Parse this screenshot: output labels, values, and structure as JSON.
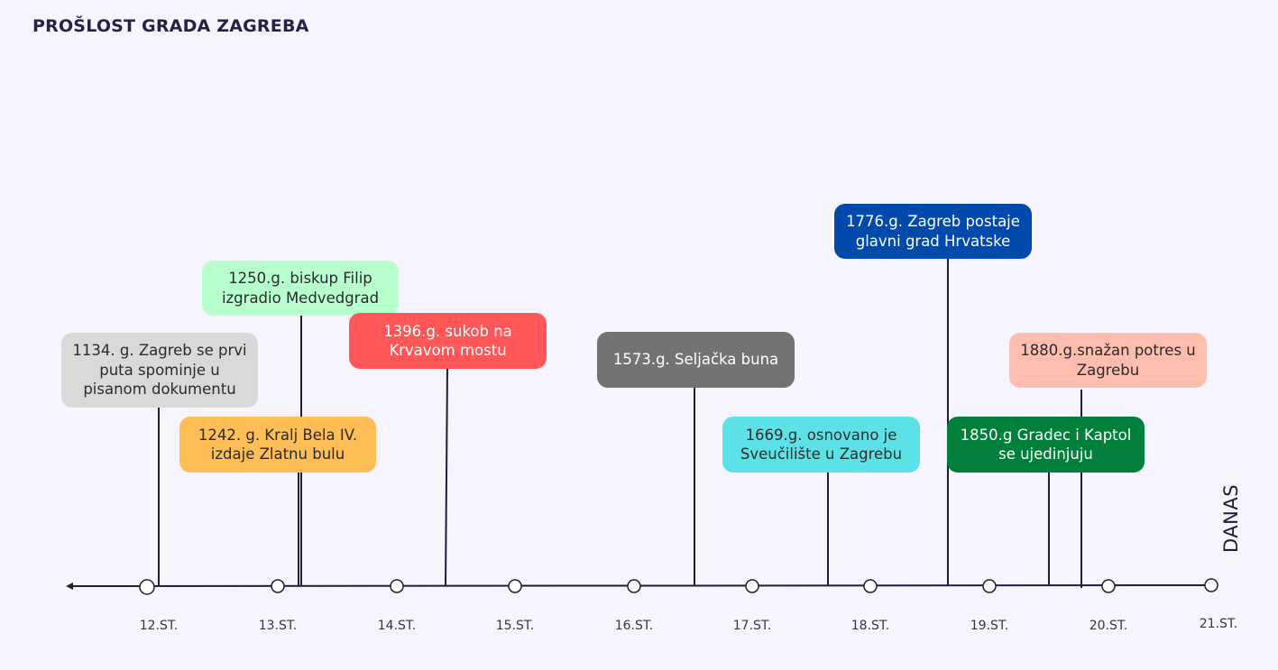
{
  "title": "PROŠLOST GRADA ZAGREBA",
  "end_label": "DANAS",
  "centuries": [
    "12.ST.",
    "13.ST.",
    "14.ST.",
    "15.ST.",
    "16.ST.",
    "17.ST.",
    "18.ST.",
    "19.ST.",
    "20.ST.",
    "21.ST."
  ],
  "events": [
    {
      "text": "1134. g. Zagreb se prvi puta spominje u pisanom dokumentu",
      "color": "#d9d9d9"
    },
    {
      "text": "1242. g. Kralj Bela IV. izdaje Zlatnu bulu",
      "color": "#ffbe55"
    },
    {
      "text": "1250.g. biskup Filip izgradio Medvedgrad",
      "color": "#b8ffce"
    },
    {
      "text": "1396.g. sukob na Krvavom mostu",
      "color": "#ff5757"
    },
    {
      "text": "1573.g. Seljačka buna",
      "color": "#737373"
    },
    {
      "text": "1669.g. osnovano je Sveučilište u Zagrebu",
      "color": "#5ce1e6"
    },
    {
      "text": "1776.g. Zagreb postaje glavni grad Hrvatske",
      "color": "#004aad"
    },
    {
      "text": "1850.g Gradec i Kaptol se ujedinjuju",
      "color": "#00803b"
    },
    {
      "text": "1880.g.snažan potres u Zagrebu",
      "color": "#ffbdb0"
    }
  ]
}
